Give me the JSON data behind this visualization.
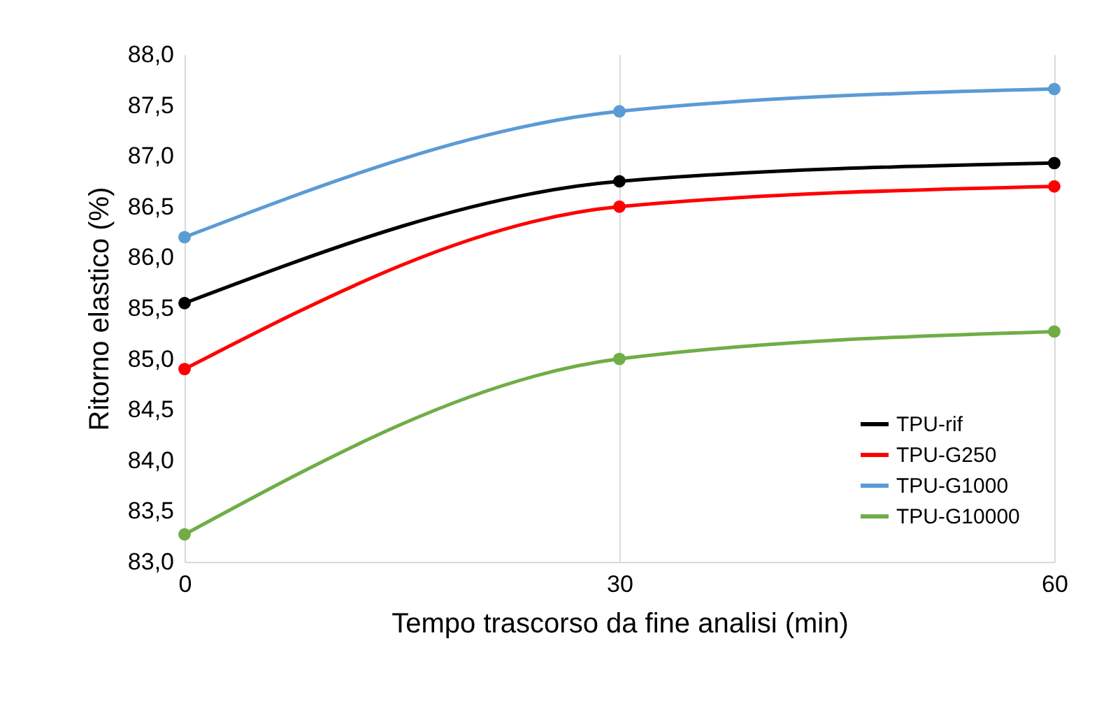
{
  "chart_data": {
    "type": "line",
    "xlabel": "Tempo trascorso da fine analisi (min)",
    "ylabel": "Ritorno elastico (%)",
    "x": [
      0,
      30,
      60
    ],
    "series": [
      {
        "name": "TPU-rif",
        "color": "#000000",
        "values": [
          85.55,
          86.75,
          86.93
        ]
      },
      {
        "name": "TPU-G250",
        "color": "#ff0000",
        "values": [
          84.9,
          86.5,
          86.7
        ]
      },
      {
        "name": "TPU-G1000",
        "color": "#5b9bd5",
        "values": [
          86.2,
          87.44,
          87.66
        ]
      },
      {
        "name": "TPU-G10000",
        "color": "#70ad47",
        "values": [
          83.27,
          85.0,
          85.27
        ]
      }
    ],
    "xlim": [
      0,
      60
    ],
    "xticks": [
      0,
      30,
      60
    ],
    "ylim": [
      83,
      88
    ],
    "yticks": [
      {
        "value": 83,
        "label": "83,0"
      },
      {
        "value": 83.5,
        "label": "83,5"
      },
      {
        "value": 84,
        "label": "84,0"
      },
      {
        "value": 84.5,
        "label": "84,5"
      },
      {
        "value": 85,
        "label": "85,0"
      },
      {
        "value": 85.5,
        "label": "85,5"
      },
      {
        "value": 86,
        "label": "86,0"
      },
      {
        "value": 86.5,
        "label": "86,5"
      },
      {
        "value": 87,
        "label": "87,0"
      },
      {
        "value": 87.5,
        "label": "87,5"
      },
      {
        "value": 88,
        "label": "88,0"
      }
    ],
    "grid": "x",
    "legend": "bottom right",
    "marker": "circle",
    "line_style": "solid"
  }
}
